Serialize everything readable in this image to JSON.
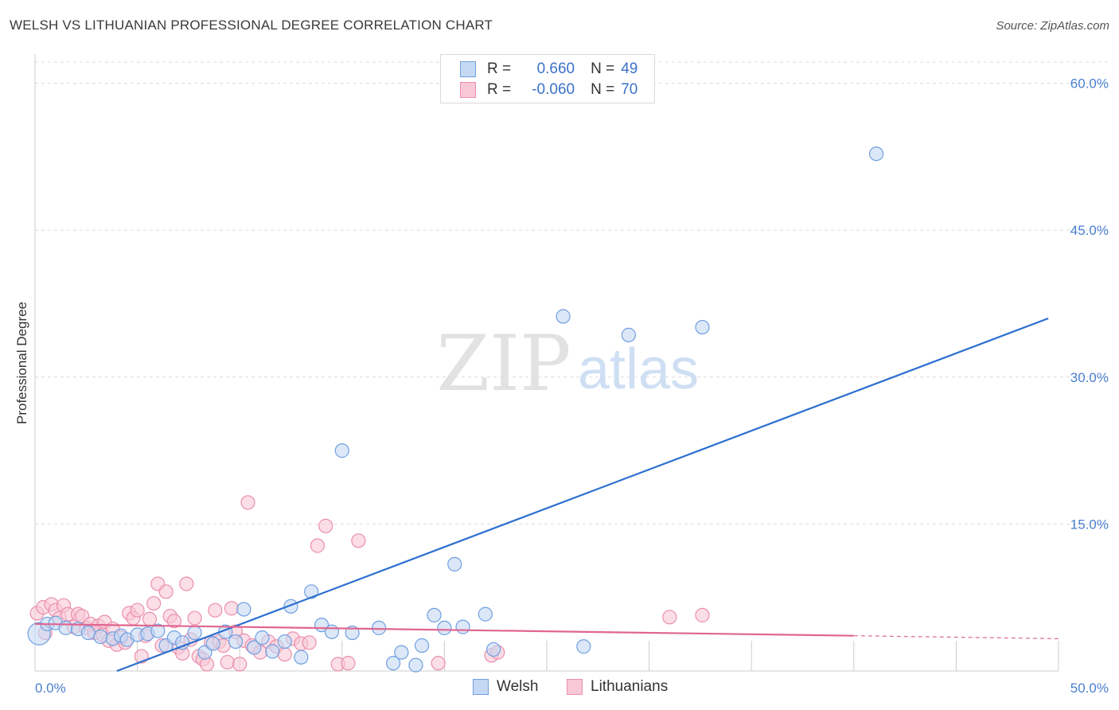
{
  "title": "WELSH VS LITHUANIAN PROFESSIONAL DEGREE CORRELATION CHART",
  "source": "Source: ZipAtlas.com",
  "watermark": {
    "zip": "ZIP",
    "atlas": "atlas"
  },
  "legend": {
    "r_label": "R =",
    "n_label": "N =",
    "rows": [
      {
        "r": "0.660",
        "n": "49"
      },
      {
        "r": "-0.060",
        "n": "70"
      }
    ]
  },
  "colors": {
    "welsh_fill": "#c5d8f3",
    "welsh_stroke": "#6f9fe0",
    "welsh_line": "#2b6fcf",
    "lith_fill": "#f8c8d6",
    "lith_stroke": "#ea8fac",
    "lith_line": "#e0668f",
    "grid": "#dcdcdc",
    "tick": "#4a7fd0"
  },
  "chart_data": {
    "type": "scatter",
    "title": "WELSH VS LITHUANIAN PROFESSIONAL DEGREE CORRELATION CHART",
    "xlabel": "",
    "ylabel": "Professional Degree",
    "xlim": [
      0,
      50
    ],
    "ylim": [
      0,
      62
    ],
    "x_tick_labels": [
      {
        "value": 0,
        "label": "0.0%"
      },
      {
        "value": 50,
        "label": "50.0%"
      }
    ],
    "y_tick_labels": [
      {
        "value": 15,
        "label": "15.0%"
      },
      {
        "value": 30,
        "label": "30.0%"
      },
      {
        "value": 45,
        "label": "45.0%"
      },
      {
        "value": 60,
        "label": "60.0%"
      }
    ],
    "legend_position": "top-center",
    "series": [
      {
        "name": "Welsh",
        "r": 0.66,
        "n": 49,
        "trend": {
          "x0": 4.0,
          "y0": 0.0,
          "x1": 49.5,
          "y1": 36.0
        },
        "points": [
          [
            0.2,
            3.8
          ],
          [
            0.6,
            4.8
          ],
          [
            1.0,
            4.9
          ],
          [
            1.5,
            4.4
          ],
          [
            2.1,
            4.3
          ],
          [
            2.6,
            3.9
          ],
          [
            3.2,
            3.5
          ],
          [
            3.8,
            3.3
          ],
          [
            4.2,
            3.6
          ],
          [
            4.5,
            3.2
          ],
          [
            5.0,
            3.7
          ],
          [
            5.5,
            3.8
          ],
          [
            6.0,
            4.1
          ],
          [
            6.4,
            2.6
          ],
          [
            6.8,
            3.4
          ],
          [
            7.2,
            2.9
          ],
          [
            7.8,
            3.9
          ],
          [
            8.3,
            1.9
          ],
          [
            8.7,
            2.8
          ],
          [
            9.3,
            4.0
          ],
          [
            9.8,
            3.0
          ],
          [
            10.2,
            6.3
          ],
          [
            10.7,
            2.4
          ],
          [
            11.1,
            3.4
          ],
          [
            11.6,
            2.0
          ],
          [
            12.2,
            3.0
          ],
          [
            12.5,
            6.6
          ],
          [
            13.0,
            1.4
          ],
          [
            13.5,
            8.1
          ],
          [
            14.0,
            4.7
          ],
          [
            14.5,
            4.0
          ],
          [
            15.0,
            22.5
          ],
          [
            15.5,
            3.9
          ],
          [
            16.8,
            4.4
          ],
          [
            17.5,
            0.8
          ],
          [
            17.9,
            1.9
          ],
          [
            18.6,
            0.6
          ],
          [
            18.9,
            2.6
          ],
          [
            19.5,
            5.7
          ],
          [
            20.0,
            4.4
          ],
          [
            20.5,
            10.9
          ],
          [
            20.9,
            4.5
          ],
          [
            22.0,
            5.8
          ],
          [
            22.4,
            2.2
          ],
          [
            25.8,
            36.2
          ],
          [
            26.8,
            2.5
          ],
          [
            29.0,
            34.3
          ],
          [
            32.6,
            35.1
          ],
          [
            41.1,
            52.8
          ]
        ]
      },
      {
        "name": "Lithuanians",
        "r": -0.06,
        "n": 70,
        "trend": {
          "x0": 0.0,
          "y0": 4.8,
          "x1": 40.0,
          "y1": 3.6,
          "dash_to_x": 50.0,
          "dash_to_y": 3.3
        },
        "points": [
          [
            0.1,
            5.9
          ],
          [
            0.4,
            6.5
          ],
          [
            0.5,
            3.9
          ],
          [
            0.8,
            6.8
          ],
          [
            1.0,
            6.2
          ],
          [
            1.2,
            5.4
          ],
          [
            1.4,
            6.7
          ],
          [
            1.6,
            5.8
          ],
          [
            1.9,
            4.5
          ],
          [
            2.1,
            5.8
          ],
          [
            2.3,
            5.6
          ],
          [
            2.5,
            4.4
          ],
          [
            2.7,
            4.8
          ],
          [
            2.9,
            3.9
          ],
          [
            3.1,
            4.6
          ],
          [
            3.3,
            3.7
          ],
          [
            3.4,
            5.0
          ],
          [
            3.6,
            3.1
          ],
          [
            3.8,
            4.3
          ],
          [
            4.0,
            2.7
          ],
          [
            4.2,
            3.4
          ],
          [
            4.4,
            2.9
          ],
          [
            4.6,
            5.9
          ],
          [
            4.8,
            5.4
          ],
          [
            5.0,
            6.2
          ],
          [
            5.2,
            1.5
          ],
          [
            5.4,
            3.6
          ],
          [
            5.6,
            5.3
          ],
          [
            5.8,
            6.9
          ],
          [
            6.0,
            8.9
          ],
          [
            6.2,
            2.6
          ],
          [
            6.4,
            8.1
          ],
          [
            6.6,
            5.6
          ],
          [
            6.8,
            5.1
          ],
          [
            7.0,
            2.4
          ],
          [
            7.2,
            1.8
          ],
          [
            7.4,
            8.9
          ],
          [
            7.6,
            3.2
          ],
          [
            7.8,
            5.4
          ],
          [
            8.0,
            1.5
          ],
          [
            8.2,
            1.2
          ],
          [
            8.4,
            0.7
          ],
          [
            8.6,
            2.9
          ],
          [
            8.8,
            6.2
          ],
          [
            9.0,
            3.0
          ],
          [
            9.2,
            2.6
          ],
          [
            9.4,
            0.9
          ],
          [
            9.6,
            6.4
          ],
          [
            9.8,
            4.0
          ],
          [
            10.0,
            0.7
          ],
          [
            10.2,
            3.1
          ],
          [
            10.4,
            17.2
          ],
          [
            10.6,
            2.6
          ],
          [
            11.0,
            1.9
          ],
          [
            11.4,
            3.0
          ],
          [
            11.8,
            2.5
          ],
          [
            12.2,
            1.7
          ],
          [
            12.6,
            3.3
          ],
          [
            13.0,
            2.8
          ],
          [
            13.4,
            2.9
          ],
          [
            13.8,
            12.8
          ],
          [
            14.2,
            14.8
          ],
          [
            14.8,
            0.7
          ],
          [
            15.3,
            0.8
          ],
          [
            15.8,
            13.3
          ],
          [
            19.7,
            0.8
          ],
          [
            22.3,
            1.6
          ],
          [
            22.6,
            1.9
          ],
          [
            31.0,
            5.5
          ],
          [
            32.6,
            5.7
          ]
        ]
      }
    ]
  },
  "bottom_legend": [
    {
      "label": "Welsh"
    },
    {
      "label": "Lithuanians"
    }
  ]
}
